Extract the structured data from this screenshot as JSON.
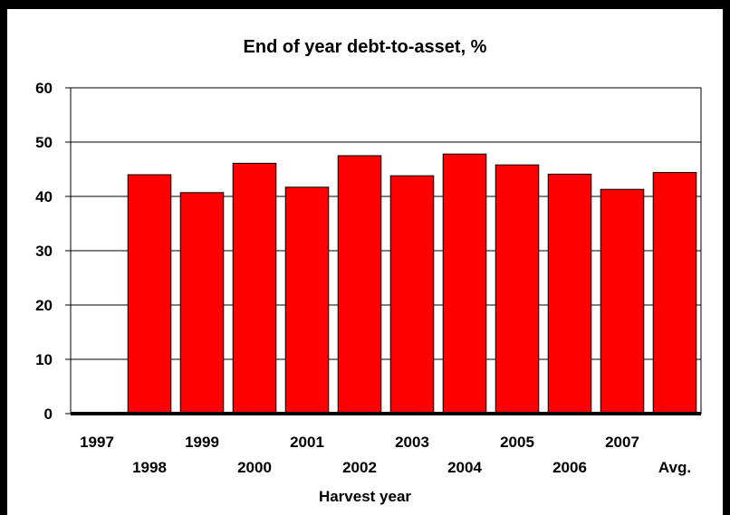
{
  "chart_data": {
    "type": "bar",
    "title": "End of year debt-to-asset, %",
    "xlabel": "Harvest year",
    "ylabel": "",
    "categories": [
      "1997",
      "1998",
      "1999",
      "2000",
      "2001",
      "2002",
      "2003",
      "2004",
      "2005",
      "2006",
      "2007",
      "Avg."
    ],
    "values": [
      0,
      44,
      40.7,
      46.1,
      41.7,
      47.5,
      43.8,
      47.8,
      45.8,
      44.1,
      41.3,
      44.4
    ],
    "ylim": [
      0,
      60
    ],
    "yticks": [
      0,
      10,
      20,
      30,
      40,
      50,
      60
    ],
    "grid": true,
    "legend": "none",
    "bar_color": "#ff0000"
  }
}
